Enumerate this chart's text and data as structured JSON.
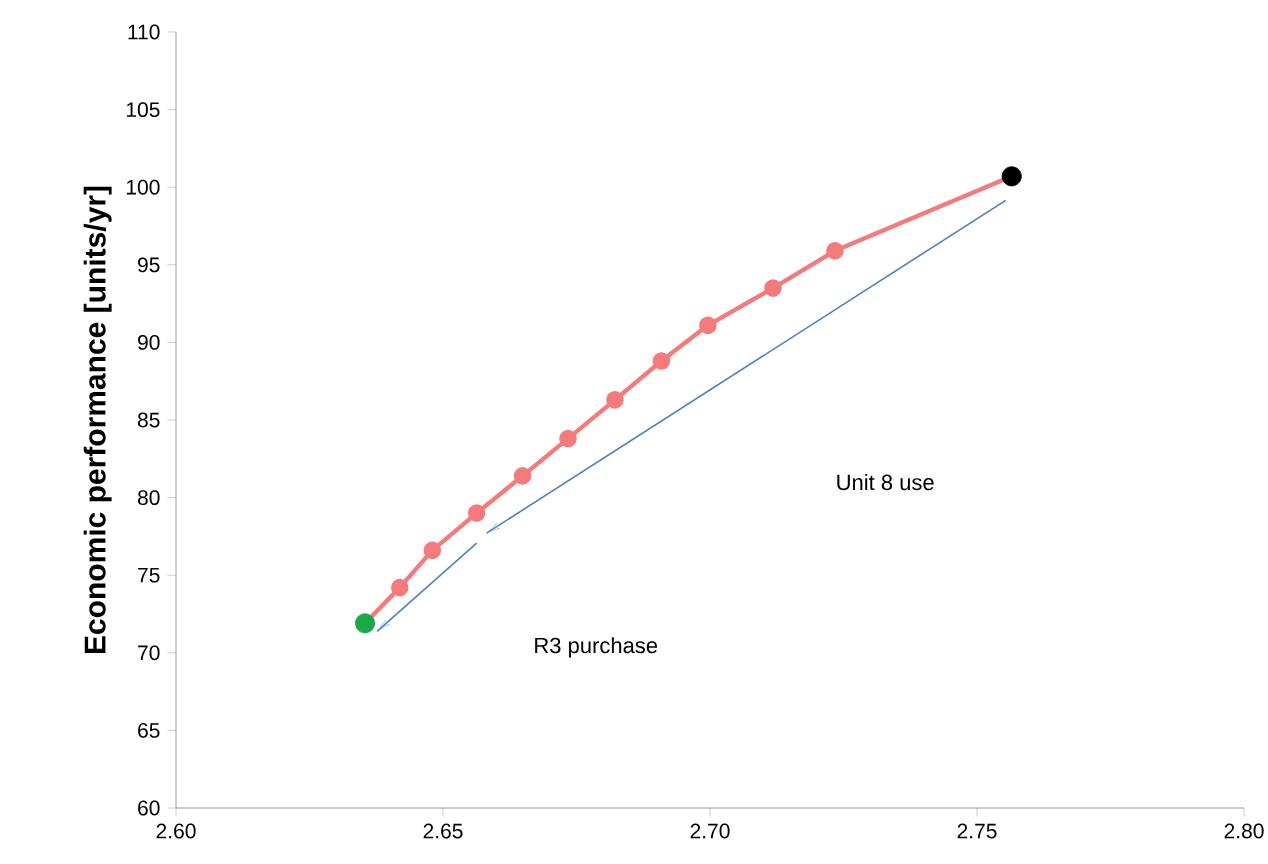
{
  "chart_data": {
    "type": "line",
    "ylabel": "Economic performance [units/yr]",
    "xlim": [
      2.6,
      2.8
    ],
    "ylim": [
      60,
      110
    ],
    "xticks": [
      {
        "value": 2.6,
        "label": "2.60"
      },
      {
        "value": 2.65,
        "label": "2.65"
      },
      {
        "value": 2.7,
        "label": "2.70"
      },
      {
        "value": 2.75,
        "label": "2.75"
      },
      {
        "value": 2.8,
        "label": "2.80"
      }
    ],
    "yticks": [
      60,
      65,
      70,
      75,
      80,
      85,
      90,
      95,
      100,
      105,
      110
    ],
    "grid": false,
    "marker": "circle",
    "line_style": "solid",
    "series": [
      {
        "type": "line",
        "color": "#f47a7c",
        "x": [
          2.6354,
          2.6419,
          2.648,
          2.6563,
          2.6649,
          2.6734,
          2.6822,
          2.6909,
          2.6996,
          2.7118,
          2.7234,
          2.7565
        ],
        "values": [
          71.9,
          74.2,
          76.6,
          79.0,
          81.4,
          83.8,
          86.3,
          88.8,
          91.1,
          93.5,
          95.9,
          100.7
        ]
      },
      {
        "type": "scatter",
        "color": "#1aa84a",
        "x": [
          2.6354
        ],
        "values": [
          71.9
        ]
      },
      {
        "type": "scatter",
        "color": "#000000",
        "x": [
          2.7565
        ],
        "values": [
          100.7
        ]
      }
    ],
    "annotations": [
      "Unit 8 use",
      "R3  purchase"
    ]
  }
}
